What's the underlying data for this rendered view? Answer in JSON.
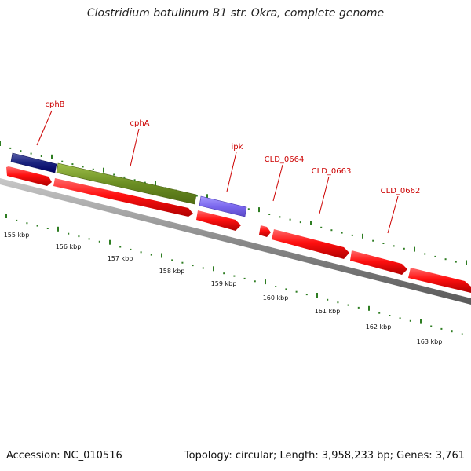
{
  "title": "Clostridium botulinum B1 str. Okra, complete genome",
  "accession_label": "Accession: NC_010516",
  "topology_label": "Topology: circular; Length: 3,958,233 bp; Genes: 3,761",
  "colors": {
    "label": "#cc0000",
    "gene_red": "#ff1010",
    "tick_green": "#2e7d22",
    "backbone": "#808080"
  },
  "scale_labels": [
    "155 kbp",
    "156 kbp",
    "157 kbp",
    "158 kbp",
    "159 kbp",
    "160 kbp",
    "161 kbp",
    "162 kbp",
    "163 kbp"
  ],
  "gene_labels": [
    {
      "name": "cphB"
    },
    {
      "name": "cphA"
    },
    {
      "name": "ipk"
    },
    {
      "name": "CLD_0664"
    },
    {
      "name": "CLD_0663"
    },
    {
      "name": "CLD_0662"
    }
  ],
  "genes": [
    {
      "name": "cphB",
      "color": "#1a237e"
    },
    {
      "name": "cphA",
      "color": "#6b8e23"
    },
    {
      "name": "ipk",
      "color": "#7b68ee"
    }
  ]
}
